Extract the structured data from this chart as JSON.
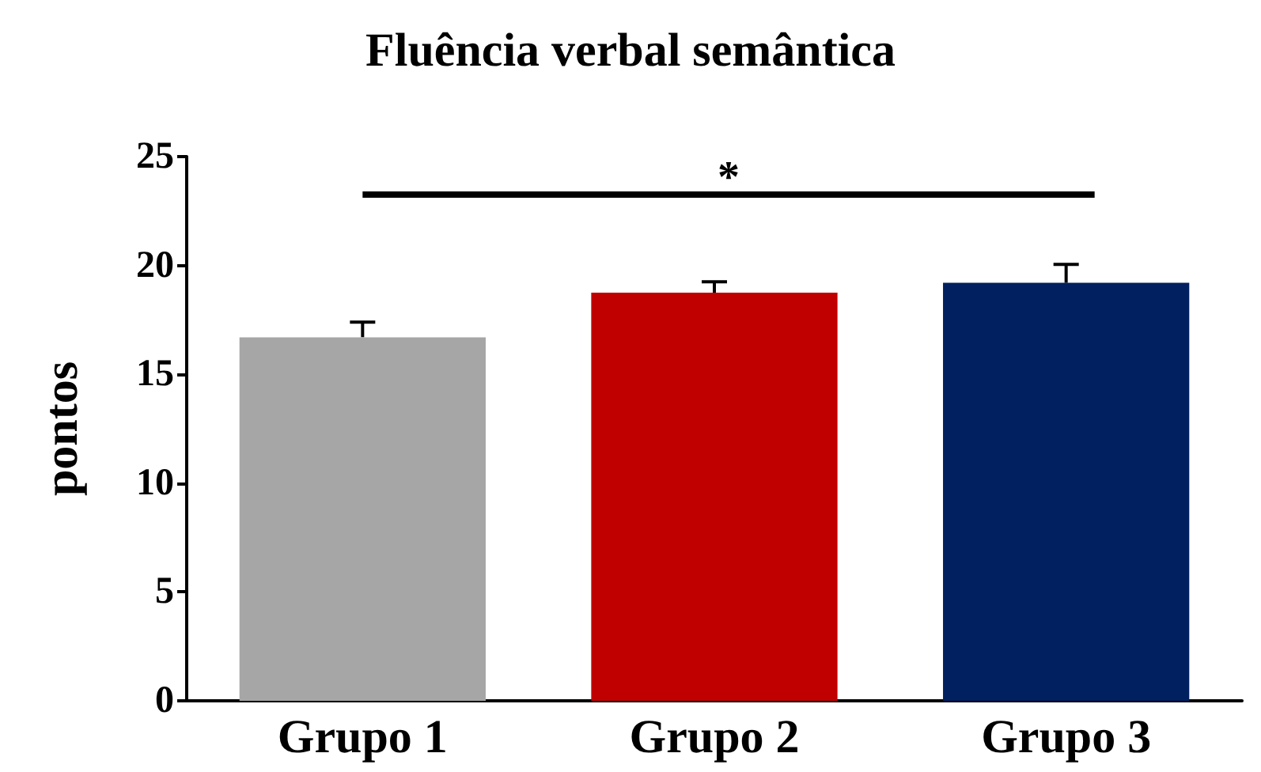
{
  "chart_data": {
    "type": "bar",
    "title": "Fluência verbal semântica",
    "ylabel": "pontos",
    "categories": [
      "Grupo 1",
      "Grupo 2",
      "Grupo 3"
    ],
    "values": [
      16.7,
      18.75,
      19.2
    ],
    "colors": [
      "#a6a6a6",
      "#c00000",
      "#002060"
    ],
    "errors": [
      0.7,
      0.5,
      0.85
    ],
    "ylim": [
      0,
      25
    ],
    "yticks": [
      0,
      5,
      10,
      15,
      20,
      25
    ],
    "grid": false,
    "annotations": [
      "*"
    ]
  }
}
